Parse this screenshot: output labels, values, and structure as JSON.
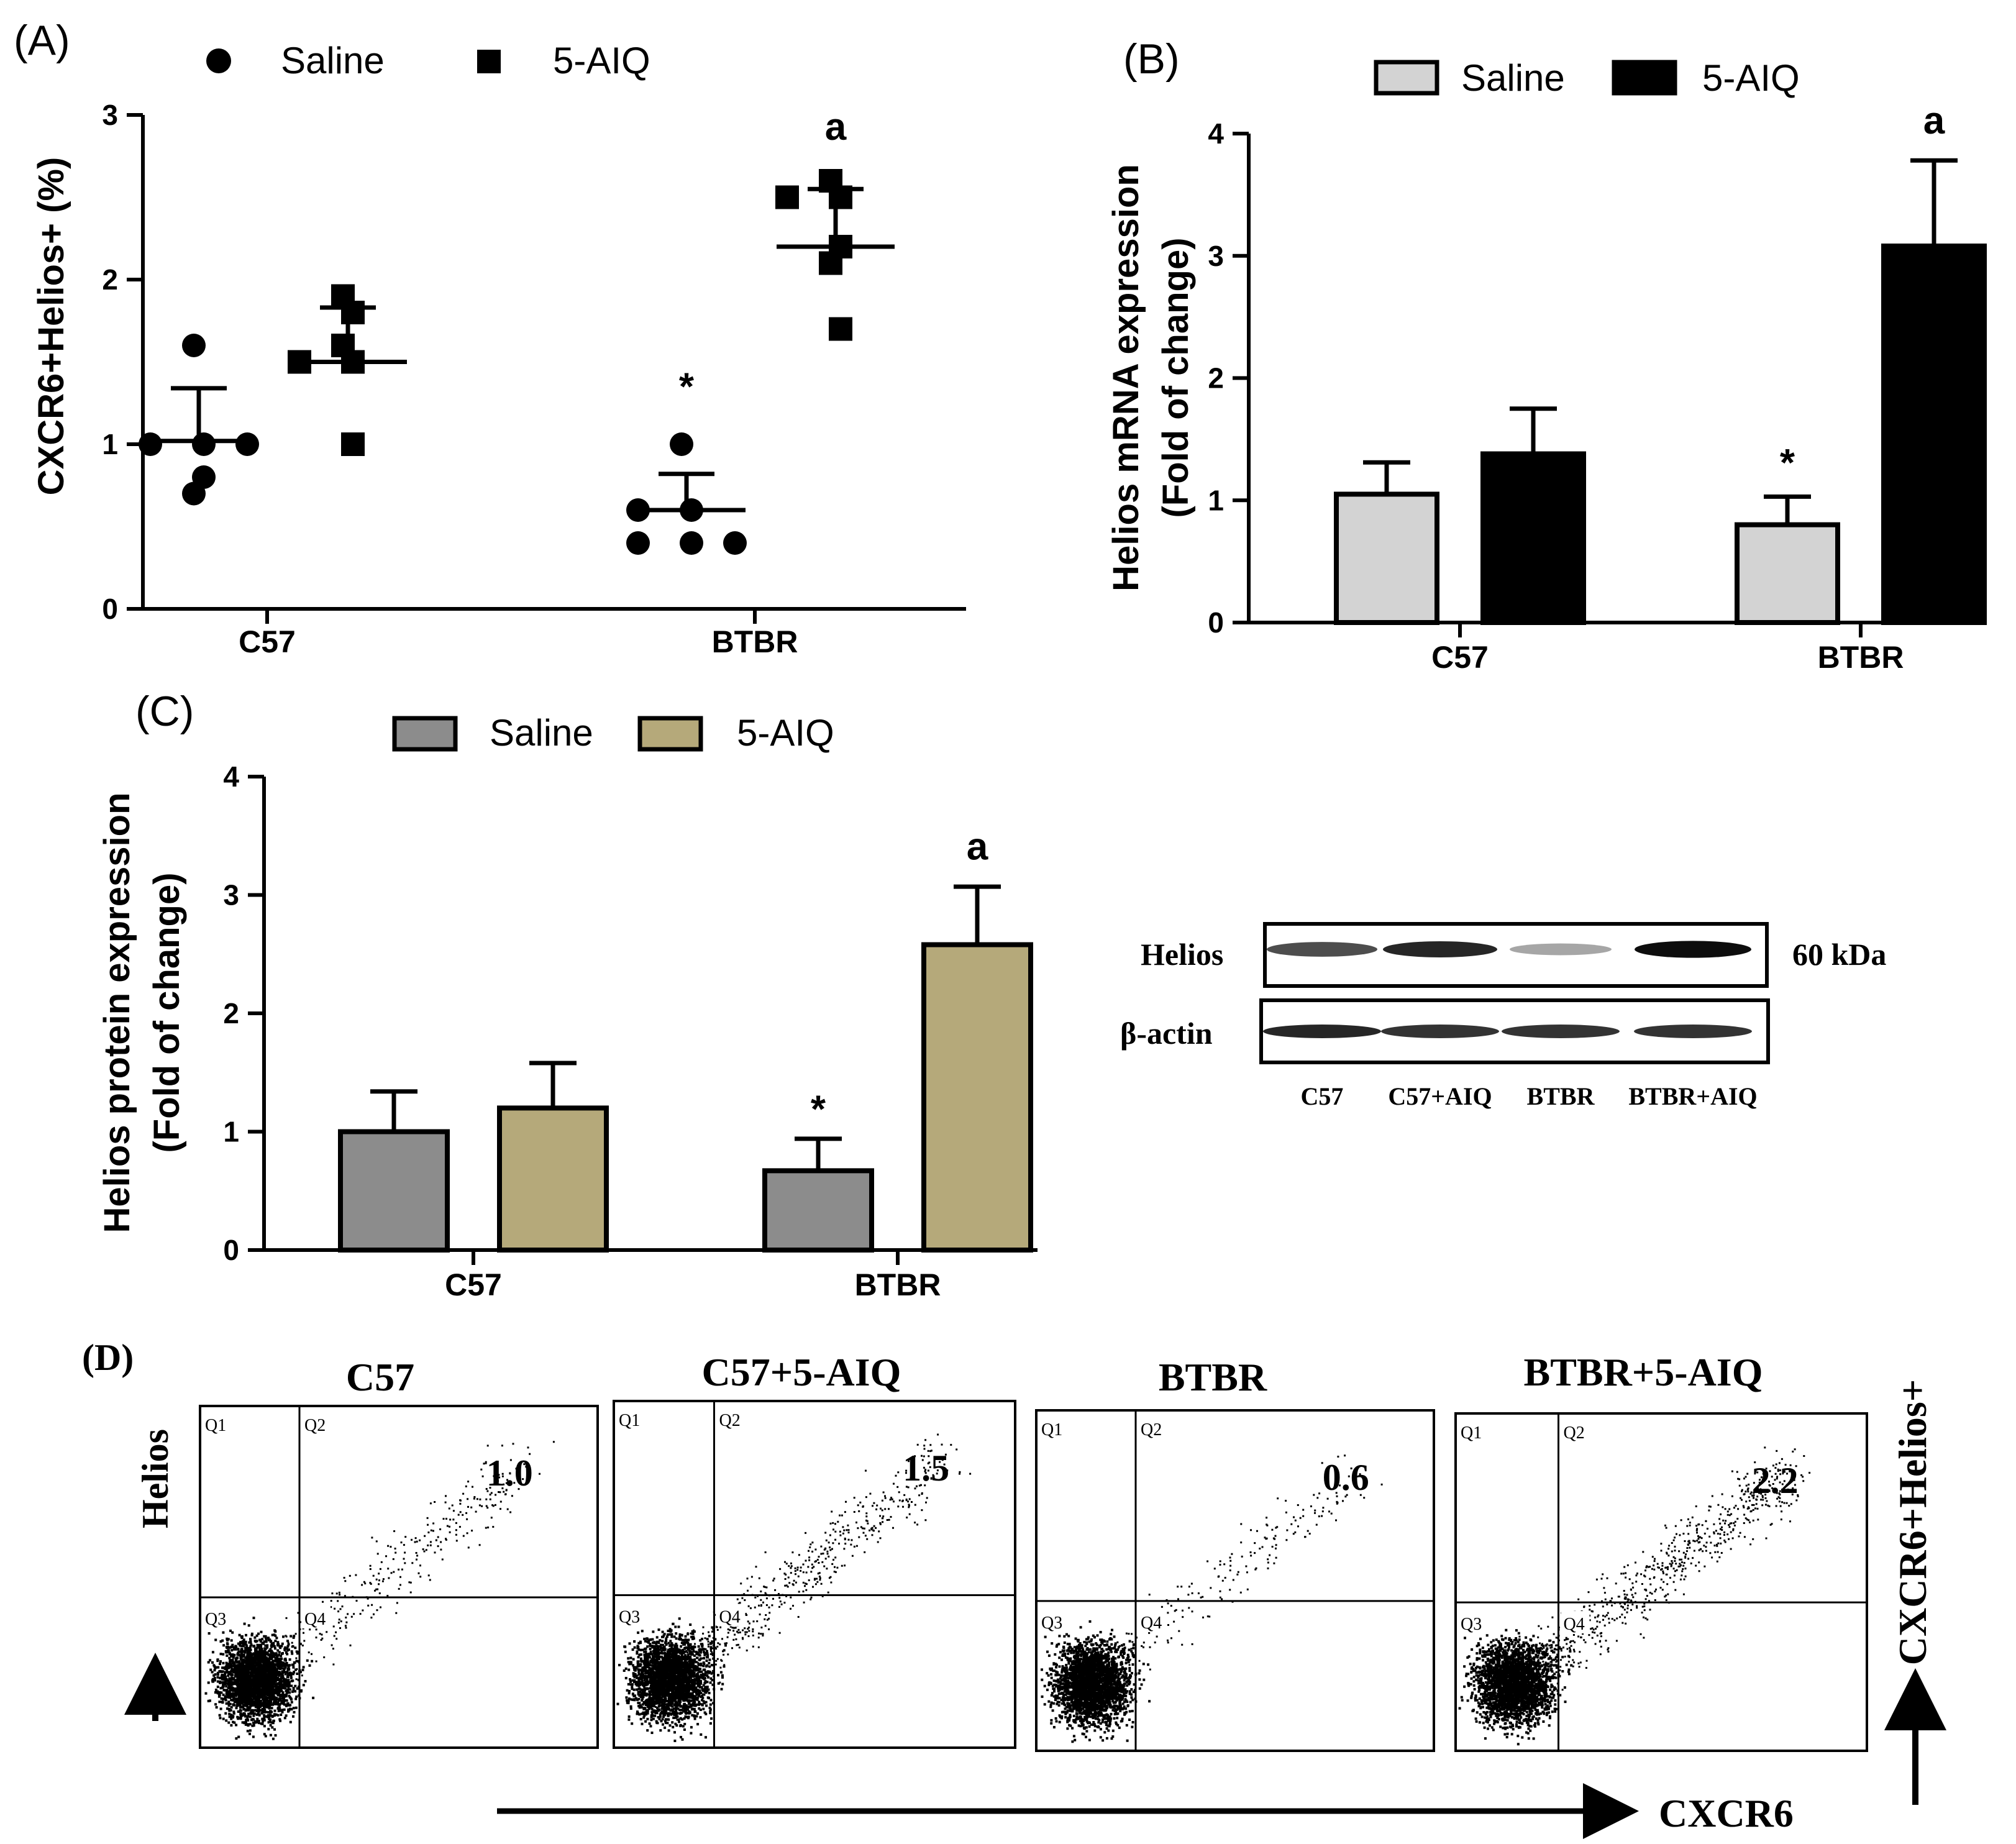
{
  "chart_data": [
    {
      "panel": "(A)",
      "type": "scatter",
      "categories": [
        "C57",
        "BTBR"
      ],
      "ylabel": "CXCR6+Helios+ (%)",
      "ylim": [
        0,
        3
      ],
      "yticks": [
        0,
        1,
        2,
        3
      ],
      "series": [
        {
          "name": "Saline",
          "marker": "circle",
          "color": "#000000",
          "groups": [
            {
              "category": "C57",
              "points": [
                1.6,
                1.0,
                1.0,
                1.0,
                0.7,
                0.8
              ],
              "mean": 1.02,
              "sd": 0.32
            },
            {
              "category": "BTBR",
              "points": [
                1.0,
                0.6,
                0.6,
                0.4,
                0.4,
                0.4
              ],
              "mean": 0.6,
              "sd": 0.22
            }
          ]
        },
        {
          "name": "5-AIQ",
          "marker": "square",
          "color": "#000000",
          "groups": [
            {
              "category": "C57",
              "points": [
                1.9,
                1.8,
                1.6,
                1.5,
                1.5,
                1.0
              ],
              "mean": 1.5,
              "sd": 0.33
            },
            {
              "category": "BTBR",
              "points": [
                2.6,
                2.5,
                2.5,
                2.2,
                2.1,
                1.7
              ],
              "mean": 2.2,
              "sd": 0.35
            }
          ]
        }
      ],
      "annotations": [
        {
          "text": "*",
          "category": "BTBR",
          "series": "Saline",
          "y": 1.27
        },
        {
          "text": "a",
          "category": "BTBR",
          "series": "5-AIQ",
          "y": 2.85
        }
      ]
    },
    {
      "panel": "(B)",
      "type": "bar",
      "categories": [
        "C57",
        "BTBR"
      ],
      "ylabel": [
        "Helios mRNA expression",
        "(Fold of change)"
      ],
      "ylim": [
        0,
        4
      ],
      "yticks": [
        0,
        1,
        2,
        3,
        4
      ],
      "series": [
        {
          "name": "Saline",
          "color": "#d3d3d3",
          "values": [
            1.05,
            0.8
          ],
          "errors": [
            0.26,
            0.23
          ]
        },
        {
          "name": "5-AIQ",
          "color": "#000000",
          "values": [
            1.38,
            3.08
          ],
          "errors": [
            0.37,
            0.7
          ]
        }
      ],
      "annotations": [
        {
          "text": "*",
          "category": "BTBR",
          "series": "Saline",
          "y": 1.2
        },
        {
          "text": "a",
          "category": "BTBR",
          "series": "5-AIQ",
          "y": 4.0
        }
      ]
    },
    {
      "panel": "(C)",
      "type": "bar",
      "categories": [
        "C57",
        "BTBR"
      ],
      "ylabel": [
        "Helios protein expression",
        "(Fold of change)"
      ],
      "ylim": [
        0,
        4
      ],
      "yticks": [
        0,
        1,
        2,
        3,
        4
      ],
      "series": [
        {
          "name": "Saline",
          "color": "#8c8c8c",
          "values": [
            1.0,
            0.67
          ],
          "errors": [
            0.34,
            0.27
          ]
        },
        {
          "name": "5-AIQ",
          "color": "#b5a97a",
          "values": [
            1.2,
            2.58
          ],
          "errors": [
            0.38,
            0.49
          ]
        }
      ],
      "annotations": [
        {
          "text": "*",
          "category": "BTBR",
          "series": "Saline",
          "y": 1.08
        },
        {
          "text": "a",
          "category": "BTBR",
          "series": "5-AIQ",
          "y": 3.3
        }
      ]
    }
  ],
  "western_blot": {
    "rows": [
      {
        "label": "Helios",
        "intensities": [
          0.7,
          0.85,
          0.35,
          0.95
        ]
      },
      {
        "label": "β-actin",
        "intensities": [
          0.85,
          0.8,
          0.8,
          0.8
        ]
      }
    ],
    "lanes": [
      "C57",
      "C57+AIQ",
      "BTBR",
      "BTBR+AIQ"
    ],
    "size_label": "60 kDa"
  },
  "flow_cytometry": {
    "panel": "(D)",
    "y_axis_label": "Helios",
    "x_axis_label": "CXCR6",
    "right_label": "CXCR6+Helios+",
    "quadrant_labels": [
      "Q1",
      "Q2",
      "Q3",
      "Q4"
    ],
    "plots": [
      {
        "title": "C57",
        "value": "1.0",
        "q2_density": 0.8
      },
      {
        "title": "C57+5-AIQ",
        "value": "1.5",
        "q2_density": 1.3
      },
      {
        "title": "BTBR",
        "value": "0.6",
        "q2_density": 0.5
      },
      {
        "title": "BTBR+5-AIQ",
        "value": "2.2",
        "q2_density": 1.8
      }
    ]
  }
}
